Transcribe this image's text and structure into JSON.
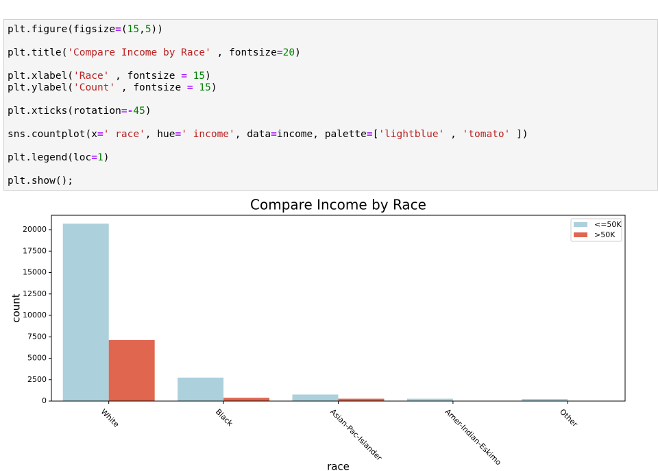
{
  "code": {
    "blocks": [
      [
        "plt.figure(figsize=(15,5))"
      ],
      [
        "plt.title('Compare Income by Race' , fontsize=20)"
      ],
      [
        "plt.xlabel('Race' , fontsize = 15)",
        "plt.ylabel('Count' , fontsize = 15)"
      ],
      [
        "plt.xticks(rotation=-45)"
      ],
      [
        "sns.countplot(x=' race', hue=' income', data=income, palette=['lightblue' , 'tomato' ])"
      ],
      [
        "plt.legend(loc=1)"
      ],
      [
        "plt.show();"
      ]
    ]
  },
  "chart_data": {
    "type": "bar",
    "title": "Compare Income by Race",
    "x_label": "race",
    "y_label": "count",
    "categories": [
      "White",
      "Black",
      "Asian-Pac-Islander",
      "Amer-Indian-Eskimo",
      "Other"
    ],
    "series": [
      {
        "name": "<=50K",
        "color": "#acd0dc",
        "values": [
          20699,
          2737,
          763,
          275,
          246
        ]
      },
      {
        "name": ">50K",
        "color": "#e06650",
        "values": [
          7117,
          387,
          276,
          36,
          25
        ]
      }
    ],
    "ylim": [
      0,
      21680
    ],
    "yticks": [
      0,
      2500,
      5000,
      7500,
      10000,
      12500,
      15000,
      17500,
      20000
    ],
    "legend": "upper right",
    "grid": false
  }
}
